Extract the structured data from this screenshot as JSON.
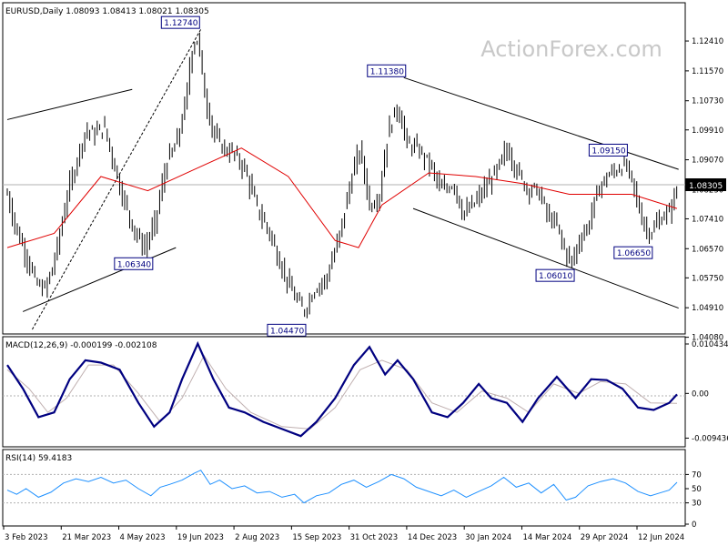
{
  "watermark": "ActionForex.com",
  "chart_data": [
    {
      "type": "candlestick",
      "panel": "price",
      "header": "EURUSD,Daily  1.08093 1.08413 1.08021 1.08305",
      "symbol": "EURUSD",
      "timeframe": "Daily",
      "ohlc_last": {
        "open": 1.08093,
        "high": 1.08413,
        "low": 1.08021,
        "close": 1.08305
      },
      "current_price_label": "1.08305",
      "ylim": [
        1.043,
        1.13
      ],
      "y_ticks": [
        "1.12410",
        "1.11570",
        "1.10730",
        "1.09910",
        "1.09070",
        "1.08230",
        "1.07410",
        "1.06570",
        "1.05750",
        "1.04910",
        "1.04080"
      ],
      "x_ticks": [
        "3 Feb 2023",
        "21 Mar 2023",
        "4 May 2023",
        "19 Jun 2023",
        "2 Aug 2023",
        "15 Sep 2023",
        "31 Oct 2023",
        "14 Dec 2023",
        "30 Jan 2024",
        "14 Mar 2024",
        "29 Apr 2024",
        "12 Jun 2024"
      ],
      "price_path": [
        {
          "d": 0,
          "v": 1.081
        },
        {
          "d": 5,
          "v": 1.072
        },
        {
          "d": 12,
          "v": 1.064
        },
        {
          "d": 18,
          "v": 1.056
        },
        {
          "d": 24,
          "v": 1.054
        },
        {
          "d": 30,
          "v": 1.062
        },
        {
          "d": 38,
          "v": 1.08
        },
        {
          "d": 44,
          "v": 1.09
        },
        {
          "d": 50,
          "v": 1.099
        },
        {
          "d": 56,
          "v": 1.098
        },
        {
          "d": 62,
          "v": 1.1
        },
        {
          "d": 68,
          "v": 1.09
        },
        {
          "d": 74,
          "v": 1.08
        },
        {
          "d": 82,
          "v": 1.07
        },
        {
          "d": 88,
          "v": 1.066
        },
        {
          "d": 94,
          "v": 1.072
        },
        {
          "d": 102,
          "v": 1.09
        },
        {
          "d": 108,
          "v": 1.095
        },
        {
          "d": 114,
          "v": 1.106
        },
        {
          "d": 118,
          "v": 1.122
        },
        {
          "d": 122,
          "v": 1.125
        },
        {
          "d": 126,
          "v": 1.11
        },
        {
          "d": 132,
          "v": 1.098
        },
        {
          "d": 138,
          "v": 1.094
        },
        {
          "d": 146,
          "v": 1.092
        },
        {
          "d": 152,
          "v": 1.088
        },
        {
          "d": 160,
          "v": 1.077
        },
        {
          "d": 168,
          "v": 1.07
        },
        {
          "d": 176,
          "v": 1.06
        },
        {
          "d": 184,
          "v": 1.052
        },
        {
          "d": 190,
          "v": 1.048
        },
        {
          "d": 196,
          "v": 1.054
        },
        {
          "d": 204,
          "v": 1.057
        },
        {
          "d": 212,
          "v": 1.068
        },
        {
          "d": 220,
          "v": 1.085
        },
        {
          "d": 226,
          "v": 1.094
        },
        {
          "d": 232,
          "v": 1.078
        },
        {
          "d": 238,
          "v": 1.08
        },
        {
          "d": 244,
          "v": 1.099
        },
        {
          "d": 250,
          "v": 1.106
        },
        {
          "d": 256,
          "v": 1.095
        },
        {
          "d": 262,
          "v": 1.094
        },
        {
          "d": 270,
          "v": 1.09
        },
        {
          "d": 278,
          "v": 1.082
        },
        {
          "d": 286,
          "v": 1.084
        },
        {
          "d": 292,
          "v": 1.075
        },
        {
          "d": 300,
          "v": 1.079
        },
        {
          "d": 308,
          "v": 1.084
        },
        {
          "d": 314,
          "v": 1.088
        },
        {
          "d": 320,
          "v": 1.094
        },
        {
          "d": 326,
          "v": 1.088
        },
        {
          "d": 332,
          "v": 1.083
        },
        {
          "d": 340,
          "v": 1.082
        },
        {
          "d": 346,
          "v": 1.075
        },
        {
          "d": 352,
          "v": 1.072
        },
        {
          "d": 358,
          "v": 1.064
        },
        {
          "d": 362,
          "v": 1.062
        },
        {
          "d": 366,
          "v": 1.068
        },
        {
          "d": 372,
          "v": 1.072
        },
        {
          "d": 378,
          "v": 1.082
        },
        {
          "d": 384,
          "v": 1.086
        },
        {
          "d": 390,
          "v": 1.088
        },
        {
          "d": 396,
          "v": 1.089
        },
        {
          "d": 400,
          "v": 1.085
        },
        {
          "d": 404,
          "v": 1.078
        },
        {
          "d": 408,
          "v": 1.072
        },
        {
          "d": 412,
          "v": 1.07
        },
        {
          "d": 418,
          "v": 1.074
        },
        {
          "d": 424,
          "v": 1.076
        },
        {
          "d": 429,
          "v": 1.083
        }
      ],
      "moving_average": [
        {
          "d": 0,
          "v": 1.066
        },
        {
          "d": 30,
          "v": 1.07
        },
        {
          "d": 60,
          "v": 1.086
        },
        {
          "d": 90,
          "v": 1.082
        },
        {
          "d": 120,
          "v": 1.088
        },
        {
          "d": 150,
          "v": 1.094
        },
        {
          "d": 180,
          "v": 1.086
        },
        {
          "d": 210,
          "v": 1.068
        },
        {
          "d": 225,
          "v": 1.066
        },
        {
          "d": 240,
          "v": 1.078
        },
        {
          "d": 270,
          "v": 1.087
        },
        {
          "d": 300,
          "v": 1.086
        },
        {
          "d": 330,
          "v": 1.084
        },
        {
          "d": 360,
          "v": 1.081
        },
        {
          "d": 380,
          "v": 1.081
        },
        {
          "d": 400,
          "v": 1.081
        },
        {
          "d": 429,
          "v": 1.077
        }
      ],
      "annotations": [
        {
          "text": "1.12740",
          "d": 122,
          "v": 1.1274
        },
        {
          "text": "1.11380",
          "d": 254,
          "v": 1.1138
        },
        {
          "text": "1.09150",
          "d": 396,
          "v": 1.0915
        },
        {
          "text": "1.06340",
          "d": 92,
          "v": 1.0634
        },
        {
          "text": "1.06010",
          "d": 362,
          "v": 1.0601
        },
        {
          "text": "1.06650",
          "d": 412,
          "v": 1.0665
        },
        {
          "text": "1.04470",
          "d": 190,
          "v": 1.0447
        }
      ],
      "trendlines": [
        {
          "style": "solid",
          "from": {
            "d": 0,
            "v": 1.102
          },
          "to": {
            "d": 80,
            "v": 1.1105
          }
        },
        {
          "style": "solid",
          "from": {
            "d": 10,
            "v": 1.048
          },
          "to": {
            "d": 108,
            "v": 1.066
          }
        },
        {
          "style": "dashed",
          "from": {
            "d": 16,
            "v": 1.043
          },
          "to": {
            "d": 124,
            "v": 1.1274
          }
        },
        {
          "style": "solid",
          "from": {
            "d": 254,
            "v": 1.1138
          },
          "to": {
            "d": 430,
            "v": 1.088
          }
        },
        {
          "style": "solid",
          "from": {
            "d": 260,
            "v": 1.077
          },
          "to": {
            "d": 430,
            "v": 1.049
          }
        }
      ]
    },
    {
      "type": "line",
      "panel": "macd",
      "header": "MACD(12,26,9) -0.000199 -0.002108",
      "ylim": [
        -0.0105,
        0.0112
      ],
      "y_ticks": [
        "0.010434",
        "0.00",
        "-0.009436"
      ],
      "series": [
        {
          "role": "main",
          "color": "#000080",
          "values": [
            {
              "d": 0,
              "v": 0.006
            },
            {
              "d": 10,
              "v": 0.001
            },
            {
              "d": 20,
              "v": -0.005
            },
            {
              "d": 30,
              "v": -0.004
            },
            {
              "d": 40,
              "v": 0.003
            },
            {
              "d": 50,
              "v": 0.007
            },
            {
              "d": 60,
              "v": 0.0065
            },
            {
              "d": 72,
              "v": 0.005
            },
            {
              "d": 84,
              "v": -0.002
            },
            {
              "d": 94,
              "v": -0.007
            },
            {
              "d": 104,
              "v": -0.004
            },
            {
              "d": 112,
              "v": 0.003
            },
            {
              "d": 122,
              "v": 0.0105
            },
            {
              "d": 132,
              "v": 0.003
            },
            {
              "d": 142,
              "v": -0.003
            },
            {
              "d": 152,
              "v": -0.004
            },
            {
              "d": 164,
              "v": -0.006
            },
            {
              "d": 176,
              "v": -0.0075
            },
            {
              "d": 188,
              "v": -0.009
            },
            {
              "d": 198,
              "v": -0.006
            },
            {
              "d": 210,
              "v": -0.001
            },
            {
              "d": 222,
              "v": 0.006
            },
            {
              "d": 232,
              "v": 0.0098
            },
            {
              "d": 242,
              "v": 0.004
            },
            {
              "d": 250,
              "v": 0.007
            },
            {
              "d": 260,
              "v": 0.003
            },
            {
              "d": 272,
              "v": -0.004
            },
            {
              "d": 282,
              "v": -0.005
            },
            {
              "d": 292,
              "v": -0.002
            },
            {
              "d": 302,
              "v": 0.002
            },
            {
              "d": 310,
              "v": -0.001
            },
            {
              "d": 320,
              "v": -0.002
            },
            {
              "d": 330,
              "v": -0.006
            },
            {
              "d": 340,
              "v": -0.001
            },
            {
              "d": 352,
              "v": 0.0035
            },
            {
              "d": 364,
              "v": -0.001
            },
            {
              "d": 374,
              "v": 0.003
            },
            {
              "d": 384,
              "v": 0.0028
            },
            {
              "d": 394,
              "v": 0.001
            },
            {
              "d": 404,
              "v": -0.003
            },
            {
              "d": 414,
              "v": -0.0035
            },
            {
              "d": 424,
              "v": -0.002
            },
            {
              "d": 429,
              "v": -0.0002
            }
          ]
        },
        {
          "role": "signal",
          "color": "#c0b0b0",
          "values": [
            {
              "d": 0,
              "v": 0.005
            },
            {
              "d": 14,
              "v": 0.001
            },
            {
              "d": 26,
              "v": -0.004
            },
            {
              "d": 38,
              "v": -0.001
            },
            {
              "d": 52,
              "v": 0.006
            },
            {
              "d": 68,
              "v": 0.006
            },
            {
              "d": 84,
              "v": 0.0
            },
            {
              "d": 98,
              "v": -0.006
            },
            {
              "d": 112,
              "v": -0.001
            },
            {
              "d": 126,
              "v": 0.008
            },
            {
              "d": 140,
              "v": 0.001
            },
            {
              "d": 156,
              "v": -0.004
            },
            {
              "d": 176,
              "v": -0.007
            },
            {
              "d": 194,
              "v": -0.0075
            },
            {
              "d": 210,
              "v": -0.003
            },
            {
              "d": 226,
              "v": 0.005
            },
            {
              "d": 240,
              "v": 0.007
            },
            {
              "d": 256,
              "v": 0.005
            },
            {
              "d": 272,
              "v": -0.002
            },
            {
              "d": 288,
              "v": -0.004
            },
            {
              "d": 304,
              "v": 0.0005
            },
            {
              "d": 320,
              "v": -0.001
            },
            {
              "d": 334,
              "v": -0.004
            },
            {
              "d": 350,
              "v": 0.002
            },
            {
              "d": 366,
              "v": 0.0
            },
            {
              "d": 380,
              "v": 0.0025
            },
            {
              "d": 396,
              "v": 0.002
            },
            {
              "d": 412,
              "v": -0.002
            },
            {
              "d": 429,
              "v": -0.0021
            }
          ]
        }
      ]
    },
    {
      "type": "line",
      "panel": "rsi",
      "header": "RSI(14) 59.4183",
      "ylim": [
        0,
        100
      ],
      "y_ticks": [
        "70",
        "50",
        "30",
        "0"
      ],
      "levels": [
        70,
        30
      ],
      "series": [
        {
          "role": "rsi",
          "color": "#1e90ff",
          "values": [
            {
              "d": 0,
              "v": 48
            },
            {
              "d": 6,
              "v": 42
            },
            {
              "d": 12,
              "v": 50
            },
            {
              "d": 20,
              "v": 38
            },
            {
              "d": 28,
              "v": 45
            },
            {
              "d": 36,
              "v": 58
            },
            {
              "d": 44,
              "v": 64
            },
            {
              "d": 52,
              "v": 60
            },
            {
              "d": 60,
              "v": 66
            },
            {
              "d": 68,
              "v": 58
            },
            {
              "d": 76,
              "v": 62
            },
            {
              "d": 84,
              "v": 50
            },
            {
              "d": 92,
              "v": 40
            },
            {
              "d": 98,
              "v": 52
            },
            {
              "d": 104,
              "v": 56
            },
            {
              "d": 112,
              "v": 62
            },
            {
              "d": 120,
              "v": 72
            },
            {
              "d": 124,
              "v": 76
            },
            {
              "d": 130,
              "v": 56
            },
            {
              "d": 136,
              "v": 62
            },
            {
              "d": 144,
              "v": 50
            },
            {
              "d": 152,
              "v": 54
            },
            {
              "d": 160,
              "v": 44
            },
            {
              "d": 168,
              "v": 46
            },
            {
              "d": 176,
              "v": 38
            },
            {
              "d": 184,
              "v": 42
            },
            {
              "d": 190,
              "v": 30
            },
            {
              "d": 198,
              "v": 40
            },
            {
              "d": 206,
              "v": 44
            },
            {
              "d": 214,
              "v": 56
            },
            {
              "d": 222,
              "v": 62
            },
            {
              "d": 230,
              "v": 52
            },
            {
              "d": 238,
              "v": 60
            },
            {
              "d": 246,
              "v": 70
            },
            {
              "d": 254,
              "v": 64
            },
            {
              "d": 262,
              "v": 52
            },
            {
              "d": 270,
              "v": 46
            },
            {
              "d": 278,
              "v": 40
            },
            {
              "d": 286,
              "v": 48
            },
            {
              "d": 294,
              "v": 38
            },
            {
              "d": 302,
              "v": 46
            },
            {
              "d": 310,
              "v": 54
            },
            {
              "d": 318,
              "v": 66
            },
            {
              "d": 326,
              "v": 52
            },
            {
              "d": 334,
              "v": 58
            },
            {
              "d": 342,
              "v": 44
            },
            {
              "d": 350,
              "v": 56
            },
            {
              "d": 358,
              "v": 34
            },
            {
              "d": 364,
              "v": 38
            },
            {
              "d": 372,
              "v": 54
            },
            {
              "d": 380,
              "v": 60
            },
            {
              "d": 388,
              "v": 64
            },
            {
              "d": 396,
              "v": 58
            },
            {
              "d": 404,
              "v": 46
            },
            {
              "d": 412,
              "v": 40
            },
            {
              "d": 418,
              "v": 44
            },
            {
              "d": 424,
              "v": 48
            },
            {
              "d": 429,
              "v": 59
            }
          ]
        }
      ]
    }
  ]
}
